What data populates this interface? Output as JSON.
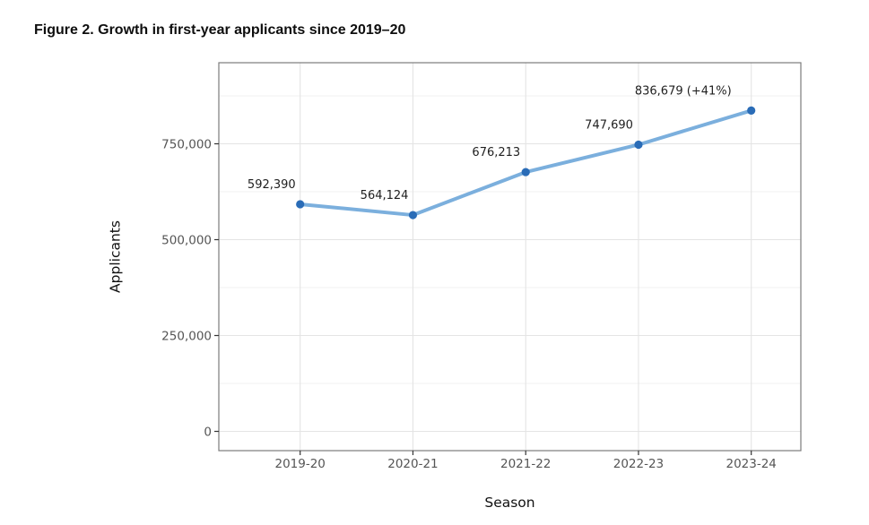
{
  "figure": {
    "title": "Figure 2. Growth in first-year applicants since 2019–20"
  },
  "chart_data": {
    "type": "line",
    "title": "Figure 2. Growth in first-year applicants since 2019–20",
    "xlabel": "Season",
    "ylabel": "Applicants",
    "categories": [
      "2019-20",
      "2020-21",
      "2021-22",
      "2022-23",
      "2023-24"
    ],
    "series": [
      {
        "name": "First-year applicants",
        "values": [
          592390,
          564124,
          676213,
          747690,
          836679
        ]
      }
    ],
    "point_labels": [
      "592,390",
      "564,124",
      "676,213",
      "747,690",
      "836,679 (+41%)"
    ],
    "yticks": [
      0,
      250000,
      500000,
      750000
    ],
    "ytick_labels": [
      "0",
      "250,000",
      "500,000",
      "750,000"
    ],
    "ylim": [
      -50000,
      961000
    ],
    "grid": true,
    "legend": false,
    "colors": {
      "line": "#7bafdd",
      "point": "#2a6cb7",
      "grid_major": "#e4e4e4",
      "grid_minor": "#f0f0f0",
      "panel_border": "#7c7c7c",
      "tick": "#333333",
      "tick_label": "#555555",
      "data_label": "#1f1f1f",
      "axis_title": "#111111",
      "title": "#0e0e0e"
    }
  }
}
